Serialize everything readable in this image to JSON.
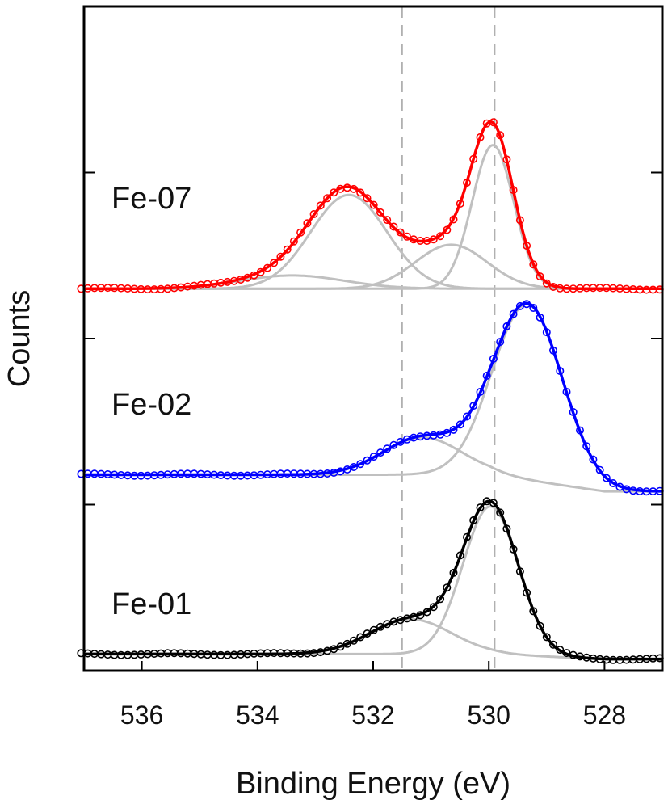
{
  "chart_data": {
    "type": "line",
    "xlabel": "Binding Energy (eV)",
    "ylabel": "Counts",
    "xlim": [
      537,
      527
    ],
    "x_reversed": true,
    "x_ticks": [
      536,
      534,
      532,
      530,
      528
    ],
    "y_ticks_shown": false,
    "reference_lines": [
      531.5,
      529.9
    ],
    "colors": {
      "fe07": "#ff0000",
      "fe02": "#0000ff",
      "fe01": "#000000",
      "components": "#c0c0c0",
      "reference": "#b0b0b0"
    },
    "series": [
      {
        "name": "Fe-07",
        "offset": 2.3,
        "background": 0.0,
        "peaks": [
          {
            "center": 533.4,
            "height": 0.08,
            "width": 0.9
          },
          {
            "center": 532.42,
            "height": 0.565,
            "width": 0.66
          },
          {
            "center": 530.65,
            "height": 0.265,
            "width": 0.62
          },
          {
            "center": 529.93,
            "height": 0.865,
            "width": 0.36
          }
        ]
      },
      {
        "name": "Fe-02",
        "offset": 1.18,
        "background": 0.0,
        "tail_drop": 0.1,
        "peaks": [
          {
            "center": 531.15,
            "height": 0.225,
            "width": 0.68
          },
          {
            "center": 529.33,
            "height": 1.06,
            "width": 0.6
          }
        ]
      },
      {
        "name": "Fe-01",
        "offset": 0.1,
        "background": 0.0,
        "tail_drop": 0.03,
        "peaks": [
          {
            "center": 531.35,
            "height": 0.21,
            "width": 0.7
          },
          {
            "center": 529.97,
            "height": 0.89,
            "width": 0.48
          }
        ]
      }
    ]
  }
}
